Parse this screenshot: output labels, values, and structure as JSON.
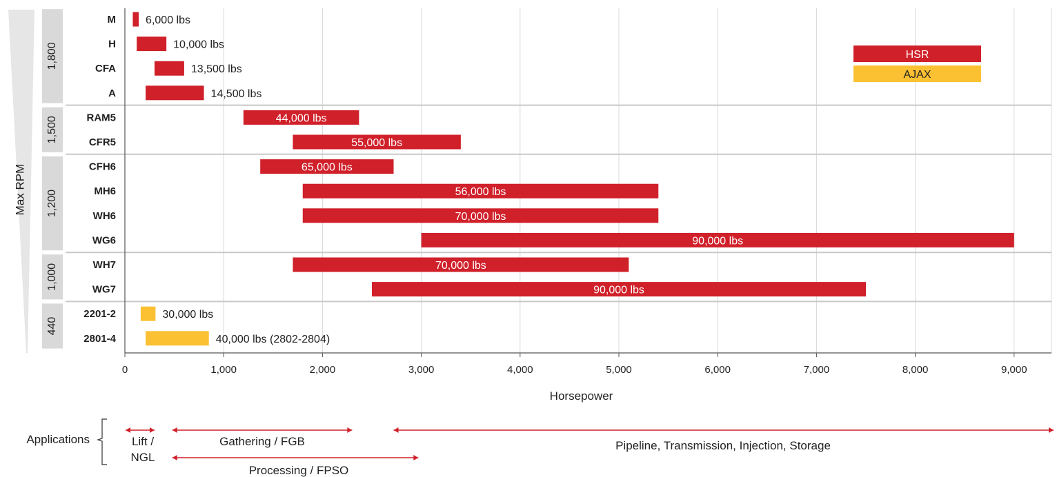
{
  "colors": {
    "red": "#d0202a",
    "yellow": "#fbc133",
    "grid": "#d9d9d9",
    "group_bg": "#d9d9d9"
  },
  "chart_data": {
    "type": "bar",
    "orientation": "horizontal-range",
    "xlabel": "Horsepower",
    "ylabel": "Max RPM",
    "xlim": [
      0,
      9400
    ],
    "x_ticks": [
      0,
      1000,
      2000,
      3000,
      4000,
      5000,
      6000,
      7000,
      8000,
      9000
    ],
    "x_tick_labels": [
      "0",
      "1,000",
      "2,000",
      "3,000",
      "4,000",
      "5,000",
      "6,000",
      "7,000",
      "8,000",
      "9,000"
    ],
    "grid": "vertical",
    "groups": [
      {
        "rpm": "1,800",
        "rows": [
          "M",
          "H",
          "CFA",
          "A"
        ]
      },
      {
        "rpm": "1,500",
        "rows": [
          "RAM5",
          "CFR5"
        ]
      },
      {
        "rpm": "1,200",
        "rows": [
          "CFH6",
          "MH6",
          "WH6",
          "WG6"
        ]
      },
      {
        "rpm": "1,000",
        "rows": [
          "WH7",
          "WG7"
        ]
      },
      {
        "rpm": "440",
        "rows": [
          "2201-2",
          "2801-4"
        ]
      }
    ],
    "series": [
      {
        "name": "HSR",
        "color": "#d0202a"
      },
      {
        "name": "AJAX",
        "color": "#fbc133"
      }
    ],
    "rows": [
      {
        "model": "M",
        "series": "HSR",
        "min": 80,
        "max": 140,
        "label": "6,000 lbs",
        "label_pos": "outside"
      },
      {
        "model": "H",
        "series": "HSR",
        "min": 120,
        "max": 420,
        "label": "10,000 lbs",
        "label_pos": "outside"
      },
      {
        "model": "CFA",
        "series": "HSR",
        "min": 300,
        "max": 600,
        "label": "13,500 lbs",
        "label_pos": "outside"
      },
      {
        "model": "A",
        "series": "HSR",
        "min": 210,
        "max": 800,
        "label": "14,500 lbs",
        "label_pos": "outside"
      },
      {
        "model": "RAM5",
        "series": "HSR",
        "min": 1200,
        "max": 2370,
        "label": "44,000 lbs",
        "label_pos": "inside"
      },
      {
        "model": "CFR5",
        "series": "HSR",
        "min": 1700,
        "max": 3400,
        "label": "55,000 lbs",
        "label_pos": "inside"
      },
      {
        "model": "CFH6",
        "series": "HSR",
        "min": 1370,
        "max": 2720,
        "label": "65,000 lbs",
        "label_pos": "inside"
      },
      {
        "model": "MH6",
        "series": "HSR",
        "min": 1800,
        "max": 5400,
        "label": "56,000 lbs",
        "label_pos": "inside"
      },
      {
        "model": "WH6",
        "series": "HSR",
        "min": 1800,
        "max": 5400,
        "label": "70,000 lbs",
        "label_pos": "inside"
      },
      {
        "model": "WG6",
        "series": "HSR",
        "min": 3000,
        "max": 9000,
        "label": "90,000 lbs",
        "label_pos": "inside"
      },
      {
        "model": "WH7",
        "series": "HSR",
        "min": 1700,
        "max": 5100,
        "label": "70,000 lbs",
        "label_pos": "inside"
      },
      {
        "model": "WG7",
        "series": "HSR",
        "min": 2500,
        "max": 7500,
        "label": "90,000 lbs",
        "label_pos": "inside"
      },
      {
        "model": "2201-2",
        "series": "AJAX",
        "min": 160,
        "max": 310,
        "label": "30,000 lbs",
        "label_pos": "outside"
      },
      {
        "model": "2801-4",
        "series": "AJAX",
        "min": 210,
        "max": 850,
        "label": "40,000 lbs (2802-2804)",
        "label_pos": "outside"
      }
    ],
    "applications": {
      "title": "Applications",
      "ranges": [
        {
          "label_lines": [
            "Lift /",
            "NGL"
          ],
          "min": 0,
          "max": 300
        },
        {
          "label_lines": [
            "Gathering / FGB"
          ],
          "min": 480,
          "max": 2300
        },
        {
          "label_lines": [
            "Processing / FPSO"
          ],
          "min": 480,
          "max": 2970
        },
        {
          "label_lines": [
            "Pipeline, Transmission, Injection, Storage"
          ],
          "min": 2720,
          "max": 9400
        }
      ]
    }
  }
}
